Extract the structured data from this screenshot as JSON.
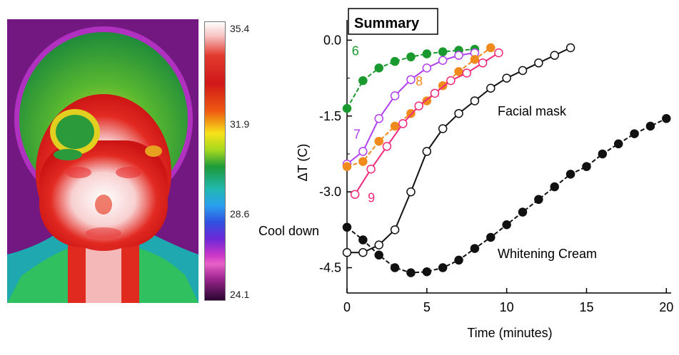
{
  "colorbar": {
    "max": "35.4",
    "t2": "31.9",
    "t3": "28.6",
    "min": "24.1"
  },
  "chart_data": {
    "type": "line",
    "title": "Summary",
    "xlabel": "Time (minutes)",
    "ylabel": "ΔT (C)",
    "xlim": [
      0,
      20.3
    ],
    "ylim": [
      -5.0,
      0.4
    ],
    "xticks": [
      "0",
      "5",
      "10",
      "15",
      "20"
    ],
    "yticks": [
      "0.0",
      "-1.5",
      "-3.0",
      "-4.5"
    ],
    "grid": false,
    "annotations": {
      "cool_down": "Cool down",
      "facial_mask": "Facial mask",
      "whitening_cream": "Whitening  Cream"
    },
    "series": [
      {
        "name": "6",
        "color": "#1a9a2e",
        "marker": "filled",
        "x": [
          0,
          1,
          2,
          3,
          4,
          5,
          6,
          7,
          8
        ],
        "y": [
          -1.35,
          -0.8,
          -0.55,
          -0.42,
          -0.33,
          -0.27,
          -0.23,
          -0.2,
          -0.18
        ]
      },
      {
        "name": "7",
        "color": "#b040f0",
        "marker": "open",
        "x": [
          0,
          1,
          2,
          3,
          4,
          5,
          6,
          7,
          8
        ],
        "y": [
          -2.45,
          -2.2,
          -1.55,
          -1.1,
          -0.78,
          -0.55,
          -0.4,
          -0.3,
          -0.25
        ]
      },
      {
        "name": "8",
        "color": "#f08a1c",
        "marker": "filled",
        "x": [
          0,
          1,
          2,
          3,
          4,
          5,
          6,
          7,
          8,
          9
        ],
        "y": [
          -2.5,
          -2.4,
          -2.0,
          -1.7,
          -1.45,
          -1.2,
          -0.9,
          -0.62,
          -0.38,
          -0.15
        ]
      },
      {
        "name": "9",
        "color": "#f02a7a",
        "marker": "open",
        "x": [
          0.5,
          1.5,
          2.5,
          3.5,
          4.5,
          5.5,
          6.5,
          7.5,
          8.5,
          9.5
        ],
        "y": [
          -3.05,
          -2.55,
          -2.1,
          -1.65,
          -1.3,
          -1.05,
          -0.8,
          -0.65,
          -0.45,
          -0.25
        ]
      },
      {
        "name": "",
        "color": "#111111",
        "marker": "open",
        "x": [
          0,
          1,
          2,
          3,
          4,
          5,
          6,
          7,
          8,
          9,
          10,
          11,
          12,
          13,
          14
        ],
        "y": [
          -4.2,
          -4.2,
          -4.05,
          -3.75,
          -3.0,
          -2.2,
          -1.75,
          -1.45,
          -1.2,
          -0.95,
          -0.75,
          -0.6,
          -0.45,
          -0.3,
          -0.15
        ]
      },
      {
        "name": "",
        "color": "#111111",
        "marker": "filled",
        "x": [
          0,
          1,
          2,
          3,
          4,
          5,
          6,
          7,
          8,
          9,
          10,
          11,
          12,
          13,
          14,
          15,
          16,
          17,
          18,
          19,
          20
        ],
        "y": [
          -3.7,
          -3.95,
          -4.25,
          -4.5,
          -4.6,
          -4.58,
          -4.5,
          -4.35,
          -4.12,
          -3.9,
          -3.65,
          -3.4,
          -3.15,
          -2.9,
          -2.65,
          -2.5,
          -2.25,
          -2.05,
          -1.85,
          -1.7,
          -1.55
        ]
      }
    ]
  }
}
